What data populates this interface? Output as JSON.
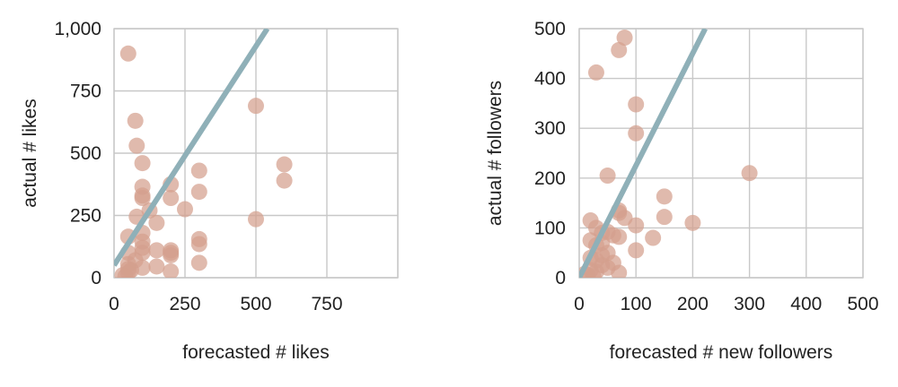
{
  "colors": {
    "point": "#d4a08e",
    "trend": "#8fb0b8",
    "grid": "#c8c8c8",
    "text": "#222222"
  },
  "chart_data": [
    {
      "type": "scatter",
      "title": "",
      "xlabel": "forecasted # likes",
      "ylabel": "actual # likes",
      "xlim": [
        0,
        1000
      ],
      "ylim": [
        0,
        1000
      ],
      "x_ticks": [
        0,
        250,
        500,
        750,
        1000
      ],
      "x_tick_labels": [
        "0",
        "250",
        "500",
        "750",
        ""
      ],
      "y_ticks": [
        0,
        250,
        500,
        750,
        1000
      ],
      "y_tick_labels": [
        "0",
        "250",
        "500",
        "750",
        "1,000"
      ],
      "grid": true,
      "trend_line": {
        "x": [
          0,
          540
        ],
        "y": [
          50,
          1000
        ]
      },
      "points": [
        {
          "x": 50,
          "y": 900
        },
        {
          "x": 75,
          "y": 630
        },
        {
          "x": 80,
          "y": 530
        },
        {
          "x": 100,
          "y": 460
        },
        {
          "x": 500,
          "y": 690
        },
        {
          "x": 600,
          "y": 455
        },
        {
          "x": 600,
          "y": 390
        },
        {
          "x": 300,
          "y": 430
        },
        {
          "x": 300,
          "y": 345
        },
        {
          "x": 200,
          "y": 375
        },
        {
          "x": 200,
          "y": 320
        },
        {
          "x": 100,
          "y": 365
        },
        {
          "x": 100,
          "y": 330
        },
        {
          "x": 100,
          "y": 320
        },
        {
          "x": 125,
          "y": 270
        },
        {
          "x": 250,
          "y": 275
        },
        {
          "x": 80,
          "y": 245
        },
        {
          "x": 500,
          "y": 235
        },
        {
          "x": 150,
          "y": 220
        },
        {
          "x": 100,
          "y": 180
        },
        {
          "x": 50,
          "y": 165
        },
        {
          "x": 300,
          "y": 155
        },
        {
          "x": 300,
          "y": 135
        },
        {
          "x": 100,
          "y": 145
        },
        {
          "x": 100,
          "y": 120
        },
        {
          "x": 150,
          "y": 110
        },
        {
          "x": 200,
          "y": 110
        },
        {
          "x": 200,
          "y": 100
        },
        {
          "x": 100,
          "y": 100
        },
        {
          "x": 50,
          "y": 100
        },
        {
          "x": 200,
          "y": 90
        },
        {
          "x": 75,
          "y": 70
        },
        {
          "x": 300,
          "y": 60
        },
        {
          "x": 50,
          "y": 55
        },
        {
          "x": 150,
          "y": 45
        },
        {
          "x": 100,
          "y": 40
        },
        {
          "x": 50,
          "y": 35
        },
        {
          "x": 60,
          "y": 30
        },
        {
          "x": 200,
          "y": 25
        },
        {
          "x": 50,
          "y": 20
        },
        {
          "x": 30,
          "y": 10
        },
        {
          "x": 40,
          "y": 5
        }
      ]
    },
    {
      "type": "scatter",
      "title": "",
      "xlabel": "forecasted # new followers",
      "ylabel": "actual # followers",
      "xlim": [
        0,
        500
      ],
      "ylim": [
        0,
        500
      ],
      "x_ticks": [
        0,
        100,
        200,
        300,
        400,
        500
      ],
      "x_tick_labels": [
        "0",
        "100",
        "200",
        "300",
        "400",
        "500"
      ],
      "y_ticks": [
        0,
        100,
        200,
        300,
        400,
        500
      ],
      "y_tick_labels": [
        "0",
        "100",
        "200",
        "300",
        "400",
        "500"
      ],
      "grid": true,
      "trend_line": {
        "x": [
          0,
          222
        ],
        "y": [
          0,
          500
        ]
      },
      "points": [
        {
          "x": 80,
          "y": 482
        },
        {
          "x": 70,
          "y": 457
        },
        {
          "x": 30,
          "y": 412
        },
        {
          "x": 100,
          "y": 348
        },
        {
          "x": 100,
          "y": 290
        },
        {
          "x": 300,
          "y": 210
        },
        {
          "x": 50,
          "y": 205
        },
        {
          "x": 150,
          "y": 163
        },
        {
          "x": 70,
          "y": 135
        },
        {
          "x": 70,
          "y": 130
        },
        {
          "x": 150,
          "y": 122
        },
        {
          "x": 80,
          "y": 120
        },
        {
          "x": 20,
          "y": 115
        },
        {
          "x": 200,
          "y": 110
        },
        {
          "x": 100,
          "y": 105
        },
        {
          "x": 30,
          "y": 100
        },
        {
          "x": 50,
          "y": 92
        },
        {
          "x": 40,
          "y": 90
        },
        {
          "x": 60,
          "y": 85
        },
        {
          "x": 70,
          "y": 82
        },
        {
          "x": 130,
          "y": 80
        },
        {
          "x": 20,
          "y": 75
        },
        {
          "x": 40,
          "y": 70
        },
        {
          "x": 30,
          "y": 65
        },
        {
          "x": 100,
          "y": 55
        },
        {
          "x": 50,
          "y": 50
        },
        {
          "x": 40,
          "y": 45
        },
        {
          "x": 20,
          "y": 40
        },
        {
          "x": 30,
          "y": 35
        },
        {
          "x": 60,
          "y": 30
        },
        {
          "x": 40,
          "y": 25
        },
        {
          "x": 50,
          "y": 20
        },
        {
          "x": 20,
          "y": 15
        },
        {
          "x": 30,
          "y": 12
        },
        {
          "x": 70,
          "y": 10
        },
        {
          "x": 10,
          "y": 8
        },
        {
          "x": 15,
          "y": 5
        },
        {
          "x": 25,
          "y": 3
        }
      ]
    }
  ]
}
